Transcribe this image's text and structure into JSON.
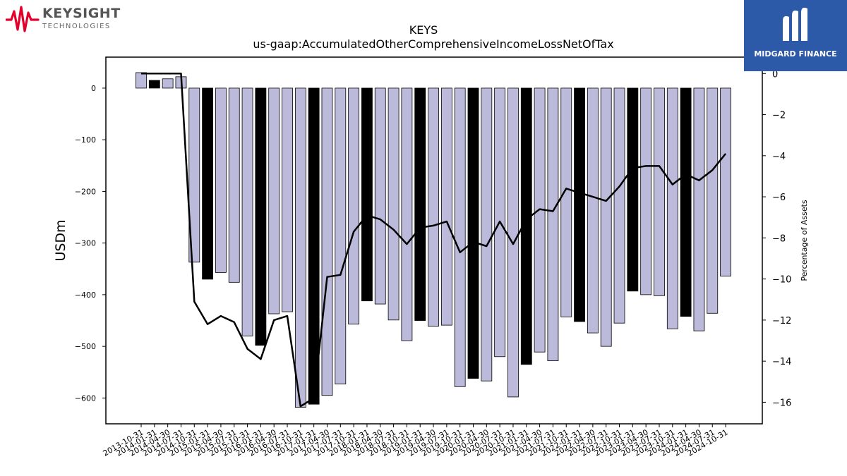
{
  "branding": {
    "left_logo_text": "KEYSIGHT",
    "left_logo_subtext": "TECHNOLOGIES",
    "right_logo_text": "MIDGARD FINANCE",
    "left_logo_color": "#e4002b",
    "right_logo_bg": "#2d5aa8"
  },
  "chart_data": {
    "type": "bar",
    "title": "KEYS",
    "subtitle": "us-gaap:AccumulatedOtherComprehensiveIncomeLossNetOfTax",
    "ylabel": "USDm",
    "y2label": "Percentage of Assets",
    "ylim": [
      -650,
      60
    ],
    "y2lim": [
      -17.05,
      0.8
    ],
    "yticks": [
      0,
      -100,
      -200,
      -300,
      -400,
      -500,
      -600
    ],
    "y2ticks": [
      0,
      -2,
      -4,
      -6,
      -8,
      -10,
      -12,
      -14,
      -16
    ],
    "grid": false,
    "bar_colors": {
      "normal": "#bcbadb",
      "highlight": "#000000"
    },
    "categories": [
      "2013-10-31",
      "2014-01-31",
      "2014-04-30",
      "2014-07-31",
      "2014-10-31",
      "2015-01-31",
      "2015-04-30",
      "2015-07-31",
      "2015-10-31",
      "2016-01-31",
      "2016-04-30",
      "2016-07-31",
      "2016-10-31",
      "2017-01-31",
      "2017-04-30",
      "2017-07-31",
      "2017-10-31",
      "2018-01-31",
      "2018-04-30",
      "2018-07-31",
      "2018-10-31",
      "2019-01-31",
      "2019-04-30",
      "2019-07-31",
      "2019-10-31",
      "2020-01-31",
      "2020-04-30",
      "2020-07-31",
      "2020-10-31",
      "2021-01-31",
      "2021-04-30",
      "2021-07-31",
      "2021-10-31",
      "2022-01-31",
      "2022-04-30",
      "2022-07-31",
      "2022-10-31",
      "2023-01-31",
      "2023-04-30",
      "2023-07-31",
      "2023-10-31",
      "2024-01-31",
      "2024-04-30",
      "2024-07-31",
      "2024-10-31"
    ],
    "highlight_categories": [
      "2014-01-31",
      "2015-01-31",
      "2016-01-31",
      "2017-01-31",
      "2018-01-31",
      "2019-01-31",
      "2020-01-31",
      "2021-01-31",
      "2022-01-31",
      "2023-01-31",
      "2024-01-31"
    ],
    "series": [
      {
        "kind": "bar",
        "axis": "left",
        "values": [
          30,
          15,
          18,
          22,
          -337,
          -370,
          -357,
          -376,
          -480,
          -498,
          -437,
          -433,
          -618,
          -612,
          -595,
          -573,
          -457,
          -412,
          -418,
          -449,
          -489,
          -450,
          -461,
          -459,
          -578,
          -562,
          -567,
          -520,
          -598,
          -535,
          -511,
          -528,
          -443,
          -452,
          -474,
          -500,
          -455,
          -393,
          -400,
          -402,
          -466,
          -442,
          -470,
          -436,
          -364
        ]
      },
      {
        "kind": "line",
        "axis": "right",
        "values": [
          0,
          0,
          0,
          0,
          -11.1,
          -12.2,
          -11.8,
          -12.1,
          -13.4,
          -13.9,
          -12.0,
          -11.8,
          -16.2,
          -15.8,
          -9.9,
          -9.8,
          -7.7,
          -6.9,
          -7.1,
          -7.6,
          -8.3,
          -7.5,
          -7.4,
          -7.2,
          -8.7,
          -8.2,
          -8.4,
          -7.2,
          -8.3,
          -7.1,
          -6.6,
          -6.7,
          -5.6,
          -5.8,
          -6.0,
          -6.2,
          -5.5,
          -4.6,
          -4.5,
          -4.5,
          -5.4,
          -4.9,
          -5.2,
          -4.7,
          -3.9
        ]
      }
    ]
  }
}
